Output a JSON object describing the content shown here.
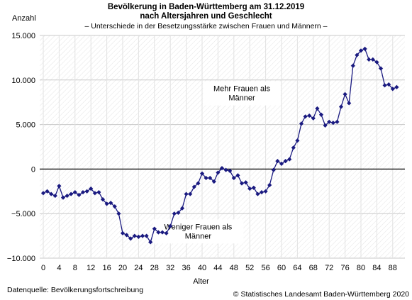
{
  "chart_data": {
    "type": "line",
    "title_lines": [
      "Bevölkerung in Baden-Württemberg am 31.12.2019",
      "nach Altersjahren und Geschlecht"
    ],
    "subtitle": "– Unterschiede in der Besetzungsstärke zwischen Frauen und Männern –",
    "ylabel": "Anzahl",
    "xlabel": "Alter",
    "ylim": [
      -10000,
      15000
    ],
    "xlim": [
      0,
      90
    ],
    "ytick_values": [
      -10000,
      -5000,
      0,
      5000,
      10000,
      15000
    ],
    "ytick_labels": [
      "−10.000",
      "−5.000",
      "0",
      "5.000",
      "10.000",
      "15.000"
    ],
    "xtick_values": [
      0,
      4,
      8,
      12,
      16,
      20,
      24,
      28,
      32,
      36,
      40,
      44,
      48,
      52,
      56,
      60,
      64,
      68,
      72,
      76,
      80,
      84,
      88
    ],
    "xtick_labels": [
      "0",
      "4",
      "8",
      "12",
      "16",
      "20",
      "24",
      "28",
      "32",
      "36",
      "40",
      "44",
      "48",
      "52",
      "56",
      "60",
      "64",
      "68",
      "72",
      "76",
      "80",
      "84",
      "88"
    ],
    "series": [
      {
        "color": "#1a1a80",
        "x": [
          0,
          1,
          2,
          3,
          4,
          5,
          6,
          7,
          8,
          9,
          10,
          11,
          12,
          13,
          14,
          15,
          16,
          17,
          18,
          19,
          20,
          21,
          22,
          23,
          24,
          25,
          26,
          27,
          28,
          29,
          30,
          31,
          32,
          33,
          34,
          35,
          36,
          37,
          38,
          39,
          40,
          41,
          42,
          43,
          44,
          45,
          46,
          47,
          48,
          49,
          50,
          51,
          52,
          53,
          54,
          55,
          56,
          57,
          58,
          59,
          60,
          61,
          62,
          63,
          64,
          65,
          66,
          67,
          68,
          69,
          70,
          71,
          72,
          73,
          74,
          75,
          76,
          77,
          78,
          79,
          80,
          81,
          82,
          83,
          84,
          85,
          86,
          87,
          88,
          89
        ],
        "y": [
          -2700,
          -2500,
          -2800,
          -3000,
          -1900,
          -3200,
          -3000,
          -2800,
          -2600,
          -2900,
          -2600,
          -2500,
          -2200,
          -2700,
          -2600,
          -3400,
          -3900,
          -3800,
          -4200,
          -5000,
          -7200,
          -7400,
          -7800,
          -7500,
          -7600,
          -7500,
          -7500,
          -8200,
          -6700,
          -7100,
          -7100,
          -7200,
          -6400,
          -5000,
          -4900,
          -4400,
          -2800,
          -2800,
          -2000,
          -1600,
          -500,
          -1000,
          -1000,
          -1400,
          -400,
          100,
          -100,
          -200,
          -1000,
          -700,
          -1600,
          -1500,
          -2200,
          -2100,
          -2800,
          -2600,
          -2500,
          -1800,
          -100,
          900,
          600,
          900,
          1100,
          2400,
          3200,
          5100,
          5900,
          6000,
          5700,
          6800,
          6100,
          4900,
          5300,
          5200,
          5300,
          7000,
          8400,
          7400,
          11600,
          12800,
          13300,
          13500,
          12300,
          12300,
          12000,
          11300,
          9400,
          9500,
          9000,
          9200
        ]
      }
    ],
    "annotations": [
      {
        "lines": [
          "Mehr Frauen als",
          "Männer"
        ],
        "x": 50,
        "y": 8500
      },
      {
        "lines": [
          "Weniger Frauen als",
          "Männer"
        ],
        "x": 39,
        "y": -7000
      }
    ]
  },
  "footer": {
    "source": "Datenquelle: Bevölkerungsfortschreibung",
    "copyright": "© Statistisches Landesamt Baden-Württemberg 2020"
  }
}
